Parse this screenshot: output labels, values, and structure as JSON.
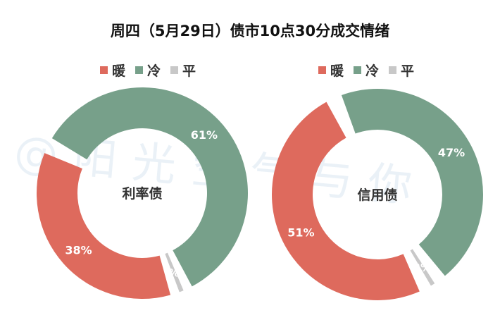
{
  "title": "周四（5月29日）债市10点30分成交情绪",
  "watermark": "@阳光空气与你",
  "colors": {
    "warm": "#de6a5d",
    "cold": "#77a08a",
    "flat": "#c8c8c8"
  },
  "chart_data": [
    {
      "type": "pie",
      "center_label": "利率债",
      "legend_position": "top",
      "series": [
        {
          "name": "暖",
          "value": 38,
          "label": "38%"
        },
        {
          "name": "冷",
          "value": 61,
          "label": "61%"
        },
        {
          "name": "平",
          "value": 1,
          "label": "%"
        }
      ]
    },
    {
      "type": "pie",
      "center_label": "信用债",
      "legend_position": "top",
      "series": [
        {
          "name": "暖",
          "value": 51,
          "label": "51%"
        },
        {
          "name": "冷",
          "value": 47,
          "label": "47%"
        },
        {
          "name": "平",
          "value": 2,
          "label": "2%"
        }
      ]
    }
  ]
}
